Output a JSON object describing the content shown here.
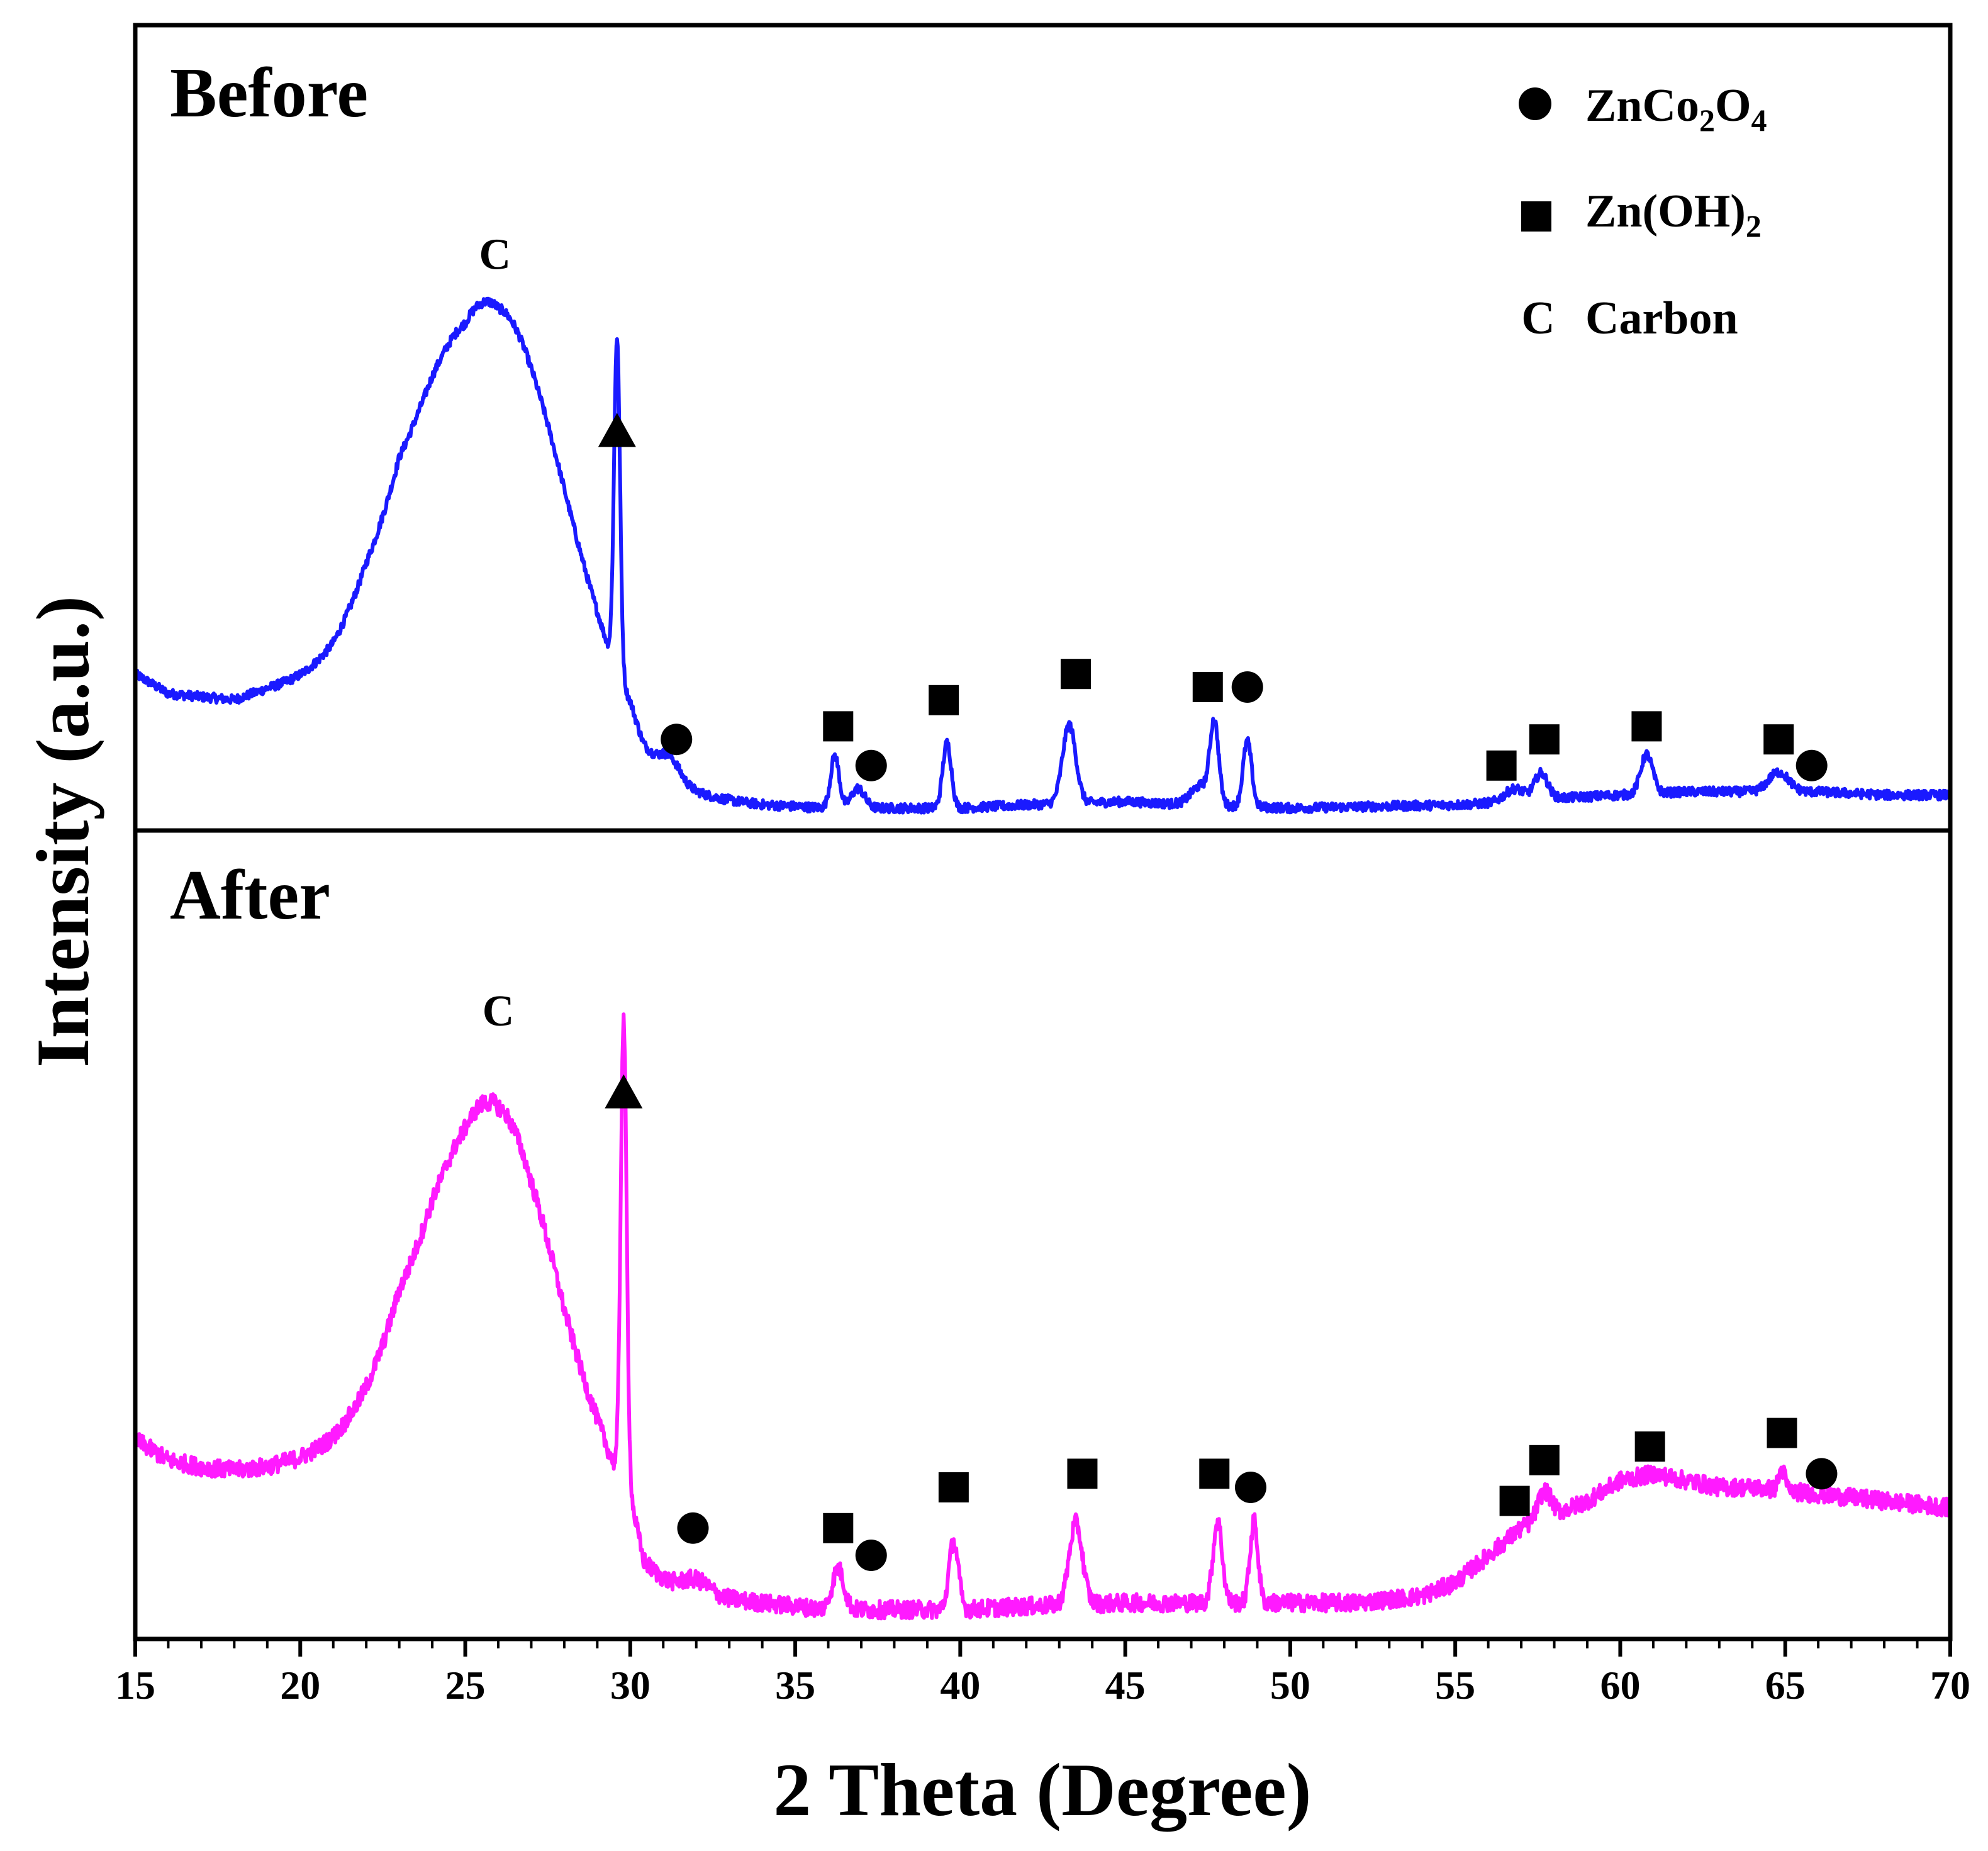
{
  "chart_data": {
    "type": "line",
    "xlabel": "2 Theta (Degree)",
    "ylabel": "Intensity (a.u.)",
    "xlim": [
      15,
      70
    ],
    "xticks": [
      15,
      20,
      25,
      30,
      35,
      40,
      45,
      50,
      55,
      60,
      65,
      70
    ],
    "ylim": [
      0,
      100
    ],
    "yticks_visible": false,
    "legend": {
      "placement": "top-right",
      "entries": [
        {
          "symbol": "circle",
          "label_main": "ZnCo",
          "sub1": "2",
          "mid": "O",
          "sub2": "4"
        },
        {
          "symbol": "square",
          "label_main": "Zn(OH)",
          "sub1": "2",
          "mid": "",
          "sub2": ""
        },
        {
          "symbol": "C",
          "label_main": "Carbon",
          "sub1": "",
          "mid": "",
          "sub2": ""
        }
      ]
    },
    "panels": [
      {
        "title": "Before",
        "color": "#1a1aff",
        "markers": [
          {
            "type": "C",
            "x": 25.9,
            "y": 86
          },
          {
            "type": "triangle",
            "x": 29.6,
            "y": 59
          },
          {
            "type": "circle",
            "x": 31.4,
            "y": 12
          },
          {
            "type": "square",
            "x": 36.3,
            "y": 14
          },
          {
            "type": "circle",
            "x": 37.3,
            "y": 8
          },
          {
            "type": "square",
            "x": 39.5,
            "y": 18
          },
          {
            "type": "square",
            "x": 43.5,
            "y": 22
          },
          {
            "type": "square",
            "x": 47.5,
            "y": 20
          },
          {
            "type": "circle",
            "x": 48.7,
            "y": 20
          },
          {
            "type": "square",
            "x": 56.4,
            "y": 8
          },
          {
            "type": "square",
            "x": 57.7,
            "y": 12
          },
          {
            "type": "square",
            "x": 60.8,
            "y": 14
          },
          {
            "type": "square",
            "x": 64.8,
            "y": 12
          },
          {
            "type": "circle",
            "x": 65.8,
            "y": 8
          }
        ],
        "peaks": [
          {
            "c": 25.9,
            "h": 73,
            "w": 2.1
          },
          {
            "c": 29.6,
            "h": 51,
            "w": 0.09
          },
          {
            "c": 31.2,
            "h": 3,
            "w": 0.3
          },
          {
            "c": 36.2,
            "h": 8,
            "w": 0.13
          },
          {
            "c": 36.9,
            "h": 3,
            "w": 0.2
          },
          {
            "c": 39.6,
            "h": 10,
            "w": 0.13
          },
          {
            "c": 43.3,
            "h": 12,
            "w": 0.2
          },
          {
            "c": 47.3,
            "h": 3,
            "w": 0.3
          },
          {
            "c": 47.7,
            "h": 12,
            "w": 0.13
          },
          {
            "c": 48.7,
            "h": 10,
            "w": 0.13
          },
          {
            "c": 56.8,
            "h": 2,
            "w": 0.3
          },
          {
            "c": 57.6,
            "h": 4,
            "w": 0.2
          },
          {
            "c": 60.8,
            "h": 6,
            "w": 0.18
          },
          {
            "c": 64.8,
            "h": 3,
            "w": 0.3
          }
        ],
        "background": [
          [
            15,
            22
          ],
          [
            16,
            19
          ],
          [
            17,
            18.5
          ],
          [
            18,
            18
          ],
          [
            19,
            19.5
          ],
          [
            20,
            20.5
          ],
          [
            21,
            22
          ],
          [
            22,
            26
          ],
          [
            23,
            27
          ],
          [
            24,
            19
          ],
          [
            25,
            9
          ],
          [
            26,
            5
          ],
          [
            27,
            5
          ],
          [
            28,
            6
          ],
          [
            29,
            7
          ],
          [
            30,
            7
          ],
          [
            30.4,
            4
          ],
          [
            32,
            3
          ],
          [
            34,
            2
          ],
          [
            36,
            1.5
          ],
          [
            38,
            1.5
          ],
          [
            40,
            1.5
          ],
          [
            42,
            2
          ],
          [
            45,
            2.5
          ],
          [
            47,
            2
          ],
          [
            50,
            1.5
          ],
          [
            55,
            2
          ],
          [
            57,
            2.5
          ],
          [
            58,
            3
          ],
          [
            60,
            3.5
          ],
          [
            62,
            4
          ],
          [
            64,
            4
          ],
          [
            66,
            4
          ],
          [
            68,
            3.5
          ],
          [
            70,
            3.5
          ]
        ],
        "noise": 0.7
      },
      {
        "title": "After",
        "color": "#ff1aff",
        "markers": [
          {
            "type": "C",
            "x": 26.0,
            "y": 90
          },
          {
            "type": "triangle",
            "x": 29.8,
            "y": 78
          },
          {
            "type": "circle",
            "x": 31.9,
            "y": 14
          },
          {
            "type": "square",
            "x": 36.3,
            "y": 14
          },
          {
            "type": "circle",
            "x": 37.3,
            "y": 10
          },
          {
            "type": "square",
            "x": 39.8,
            "y": 20
          },
          {
            "type": "square",
            "x": 43.7,
            "y": 22
          },
          {
            "type": "square",
            "x": 47.7,
            "y": 22
          },
          {
            "type": "circle",
            "x": 48.8,
            "y": 20
          },
          {
            "type": "square",
            "x": 56.8,
            "y": 18
          },
          {
            "type": "square",
            "x": 57.7,
            "y": 24
          },
          {
            "type": "square",
            "x": 60.9,
            "y": 26
          },
          {
            "type": "square",
            "x": 64.9,
            "y": 28
          },
          {
            "type": "circle",
            "x": 66.1,
            "y": 22
          }
        ],
        "peaks": [
          {
            "c": 26.0,
            "h": 63,
            "w": 1.9
          },
          {
            "c": 29.8,
            "h": 68,
            "w": 0.09
          },
          {
            "c": 32.0,
            "h": 2,
            "w": 0.4
          },
          {
            "c": 36.3,
            "h": 6,
            "w": 0.18
          },
          {
            "c": 39.8,
            "h": 10,
            "w": 0.14
          },
          {
            "c": 43.5,
            "h": 12,
            "w": 0.2
          },
          {
            "c": 47.8,
            "h": 12,
            "w": 0.14
          },
          {
            "c": 48.9,
            "h": 12,
            "w": 0.12
          },
          {
            "c": 57.7,
            "h": 4,
            "w": 0.2
          },
          {
            "c": 64.9,
            "h": 3,
            "w": 0.1
          }
        ],
        "background": [
          [
            15,
            27
          ],
          [
            16,
            24
          ],
          [
            17,
            23
          ],
          [
            18,
            22.5
          ],
          [
            19,
            23
          ],
          [
            20,
            24
          ],
          [
            21,
            25.5
          ],
          [
            22,
            28
          ],
          [
            23,
            31
          ],
          [
            24,
            26
          ],
          [
            25,
            18
          ],
          [
            26,
            13
          ],
          [
            27,
            10
          ],
          [
            28,
            10
          ],
          [
            29,
            12
          ],
          [
            30,
            12
          ],
          [
            30.4,
            5
          ],
          [
            32,
            4
          ],
          [
            34,
            3
          ],
          [
            36,
            2
          ],
          [
            38,
            2
          ],
          [
            40,
            2
          ],
          [
            42,
            2.5
          ],
          [
            45,
            3
          ],
          [
            47,
            3
          ],
          [
            50,
            3
          ],
          [
            52,
            3
          ],
          [
            54,
            4
          ],
          [
            55,
            6
          ],
          [
            56,
            10
          ],
          [
            57,
            14
          ],
          [
            58,
            16
          ],
          [
            59,
            18
          ],
          [
            60,
            21
          ],
          [
            61,
            22
          ],
          [
            62,
            21
          ],
          [
            63,
            20
          ],
          [
            64,
            20
          ],
          [
            65,
            19.5
          ],
          [
            66,
            19
          ],
          [
            67,
            18.5
          ],
          [
            68,
            18
          ],
          [
            69,
            17.5
          ],
          [
            70,
            17
          ]
        ],
        "noise": 1.3
      }
    ]
  }
}
